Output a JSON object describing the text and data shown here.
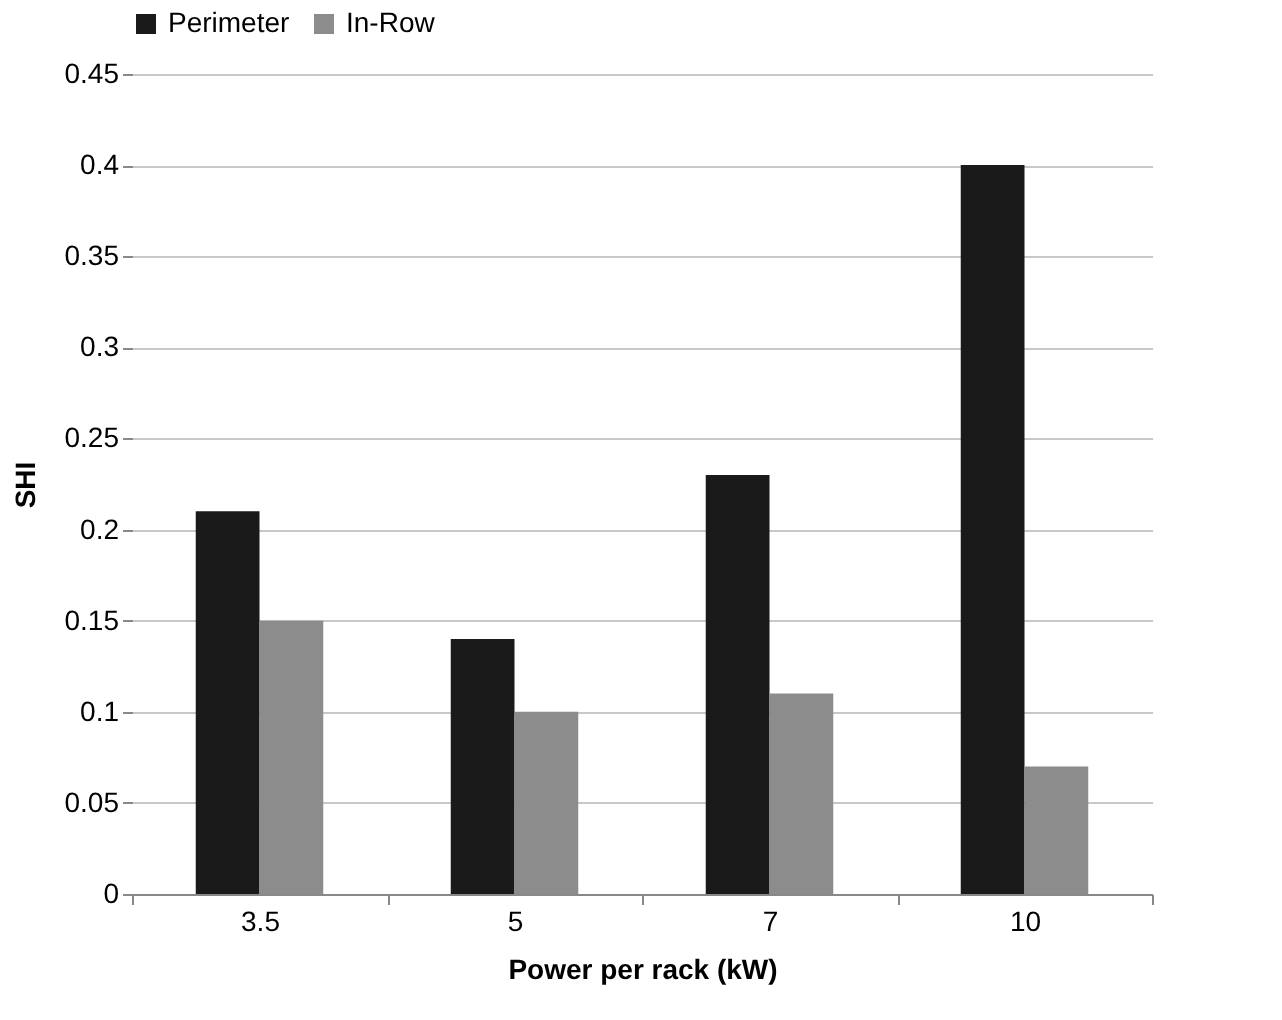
{
  "chart_data": {
    "type": "bar",
    "xlabel": "Power per rack (kW)",
    "ylabel": "SHI",
    "categories": [
      "3.5",
      "5",
      "7",
      "10"
    ],
    "series": [
      {
        "name": "Perimeter",
        "color": "#1a1a1a",
        "values": [
          0.21,
          0.14,
          0.23,
          0.4
        ]
      },
      {
        "name": "In-Row",
        "color": "#8c8c8c",
        "values": [
          0.15,
          0.1,
          0.11,
          0.07
        ]
      }
    ],
    "ylim": [
      0,
      0.45
    ],
    "yticks": [
      0,
      0.05,
      0.1,
      0.15,
      0.2,
      0.25,
      0.3,
      0.35,
      0.4,
      0.45
    ],
    "grid": "y",
    "legend": "top"
  }
}
